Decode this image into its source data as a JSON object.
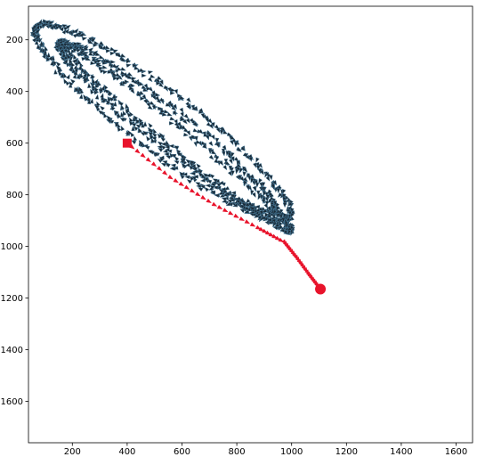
{
  "chart_data": {
    "type": "scatter",
    "title": "",
    "xlabel": "",
    "ylabel": "",
    "xlim": [
      40,
      1660
    ],
    "ylim": [
      1760,
      70
    ],
    "y_inverted": true,
    "grid": false,
    "legend": "none",
    "x_ticks": [
      200,
      400,
      600,
      800,
      1000,
      1200,
      1400,
      1600
    ],
    "y_ticks": [
      200,
      400,
      600,
      800,
      1000,
      1200,
      1400,
      1600
    ],
    "x_tick_labels": [
      "200",
      "400",
      "600",
      "800",
      "1000",
      "1200",
      "1400",
      "1600"
    ],
    "y_tick_labels": [
      "200",
      "400",
      "600",
      "800",
      "1000",
      "1200",
      "1400",
      "1600"
    ],
    "series": [
      {
        "marker": "arrow",
        "color": "#1a2b38",
        "edge_color": "#4a7fa0",
        "description_loops": [
          {
            "center": [
              530,
              520
            ],
            "semi_major": 590,
            "semi_minor": 115,
            "angle_deg": 39
          },
          {
            "center": [
              545,
              540
            ],
            "semi_major": 510,
            "semi_minor": 72,
            "angle_deg": 40
          },
          {
            "center": [
              575,
              575
            ],
            "semi_major": 555,
            "semi_minor": 40,
            "angle_deg": 41
          }
        ]
      },
      {
        "marker": "arrow",
        "color": "#e8132b",
        "path": [
          [
            400,
            600
          ],
          [
            560,
            735
          ],
          [
            720,
            840
          ],
          [
            880,
            930
          ],
          [
            975,
            985
          ],
          [
            1020,
            1045
          ],
          [
            1065,
            1110
          ],
          [
            1105,
            1165
          ]
        ],
        "start": {
          "x": 400,
          "y": 600,
          "marker": "square"
        },
        "end": {
          "x": 1105,
          "y": 1165,
          "marker": "circle"
        }
      }
    ]
  },
  "colors": {
    "background": "#ffffff",
    "axes": "#000000",
    "trajectory": "#1a2b38",
    "highlight": "#e8132b"
  }
}
